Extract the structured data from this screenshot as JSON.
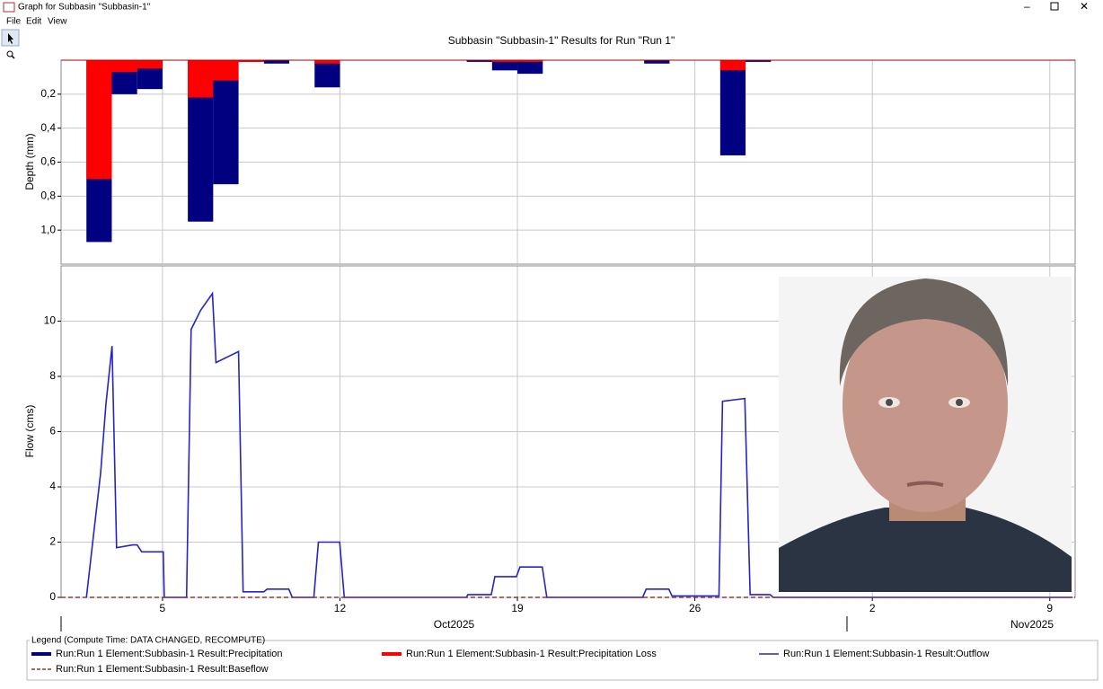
{
  "window": {
    "title": "Graph for Subbasin \"Subbasin-1\"",
    "menu": [
      "File",
      "Edit",
      "View"
    ]
  },
  "legend_title": "Legend (Compute Time: DATA CHANGED, RECOMPUTE)",
  "x_period_labels": [
    {
      "value": 16.5,
      "label": "Oct2025"
    },
    {
      "value": 39.3,
      "label": "Nov2025"
    }
  ],
  "x_period_breaks": [
    32
  ],
  "chart_data": [
    {
      "type": "bar",
      "title": "Subbasin \"Subbasin-1\" Results for Run \"Run 1\"",
      "y_label": "Depth (mm)",
      "y_inverted": true,
      "grid": true,
      "x": [
        2,
        3,
        4,
        6,
        7,
        8,
        9,
        11,
        17,
        18,
        19,
        24,
        27,
        28
      ],
      "xlim": [
        1,
        41
      ],
      "xticks": [
        5,
        12,
        19,
        26,
        {
          "value": 33,
          "label": "2"
        },
        {
          "value": 40,
          "label": "9"
        }
      ],
      "ylim": [
        0,
        1.2
      ],
      "yticks": [
        {
          "value": 0.2,
          "label": "0,2"
        },
        {
          "value": 0.4,
          "label": "0,4"
        },
        {
          "value": 0.6,
          "label": "0,6"
        },
        {
          "value": 0.8,
          "label": "0,8"
        },
        {
          "value": 1.0,
          "label": "1,0"
        }
      ],
      "series": [
        {
          "name": "Run:Run 1 Element:Subbasin-1 Result:Precipitation",
          "color": "#000080",
          "values": [
            1.07,
            0.2,
            0.17,
            0.95,
            0.73,
            0.01,
            0.02,
            0.16,
            0.01,
            0.06,
            0.08,
            0.02,
            0.56,
            0.01
          ]
        },
        {
          "name": "Run:Run 1 Element:Subbasin-1 Result:Precipitation Loss",
          "color": "#ff0000",
          "values": [
            0.7,
            0.07,
            0.05,
            0.22,
            0.12,
            0.01,
            0,
            0.02,
            0,
            0.01,
            0.01,
            0,
            0.06,
            0
          ]
        }
      ]
    },
    {
      "type": "line",
      "y_label": "Flow (cms)",
      "grid": true,
      "xlim": [
        1,
        41
      ],
      "xticks": [
        5,
        12,
        19,
        26,
        {
          "value": 33,
          "label": "2"
        },
        {
          "value": 40,
          "label": "9"
        }
      ],
      "ylim": [
        0,
        12
      ],
      "yticks": [
        0,
        2,
        4,
        6,
        8,
        10
      ],
      "series": [
        {
          "name": "Run:Run 1 Element:Subbasin-1 Result:Outflow",
          "color": "#2424c8",
          "linestyle": "solid",
          "x": [
            2.0,
            2.31,
            2.56,
            2.77,
            3.01,
            3.19,
            3.83,
            4.0,
            4.18,
            5.03,
            5.07,
            5.95,
            6.13,
            6.51,
            6.97,
            7.11,
            8.0,
            8.18,
            9.0,
            9.13,
            9.98,
            10.12,
            10.97,
            11.15,
            11.99,
            12.17,
            16.98,
            17.05,
            17.97,
            18.11,
            18.96,
            19.1,
            19.98,
            20.16,
            23.94,
            24.08,
            24.97,
            25.1,
            26.95,
            27.09,
            27.97,
            28.18,
            28.96,
            29.1,
            40.9
          ],
          "values": [
            0,
            2.5,
            4.5,
            7,
            9.1,
            1.8,
            1.9,
            1.9,
            1.65,
            1.65,
            0,
            0,
            9.7,
            10.4,
            11.0,
            8.5,
            8.9,
            0.2,
            0.2,
            0.3,
            0.3,
            0,
            0,
            2.0,
            2.0,
            0,
            0,
            0.1,
            0.1,
            0.75,
            0.75,
            1.1,
            1.1,
            0,
            0,
            0.3,
            0.3,
            0.05,
            0.05,
            7.1,
            7.2,
            0.1,
            0.1,
            0,
            0
          ]
        },
        {
          "name": "Run:Run 1 Element:Subbasin-1 Result:Baseflow",
          "color": "#8b3a3a",
          "linestyle": "dashed",
          "x": [
            1,
            41
          ],
          "values": [
            0,
            0
          ]
        }
      ]
    }
  ]
}
